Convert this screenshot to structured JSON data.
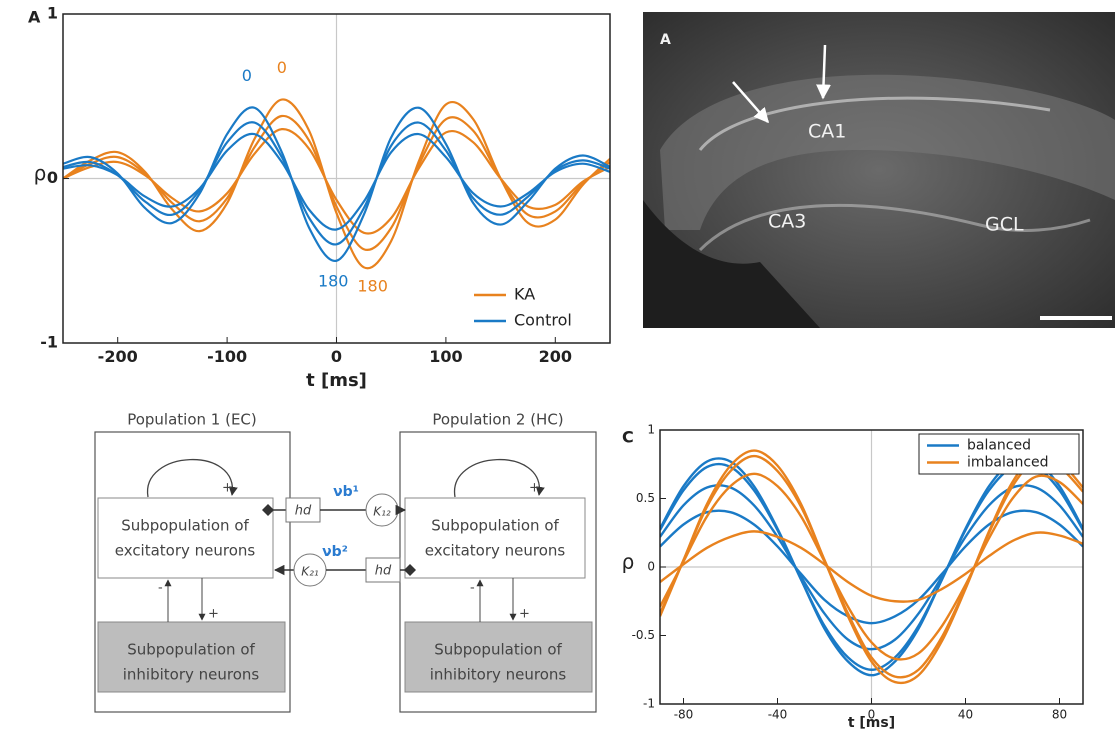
{
  "chart_data": [
    {
      "type": "line",
      "panel_label": "A",
      "xlabel": "t [ms]",
      "ylabel": "ρ",
      "x": [
        -250,
        -225,
        -200,
        -175,
        -150,
        -125,
        -100,
        -75,
        -50,
        -25,
        0,
        25,
        50,
        75,
        100,
        125,
        150,
        175,
        200,
        225,
        250
      ],
      "xlim": [
        -250,
        250
      ],
      "ylim": [
        -1,
        1
      ],
      "xticks": [
        -200,
        -100,
        0,
        100,
        200
      ],
      "yticks": [
        -1,
        0,
        1
      ],
      "zero_lines": true,
      "legend": "lower right",
      "legend_frame": false,
      "series": [
        {
          "name": "KA",
          "color": "#e8821e",
          "values": [
            [
              0.0,
              0.11,
              0.16,
              0.04,
              -0.19,
              -0.32,
              -0.15,
              0.24,
              0.48,
              0.29,
              -0.21,
              -0.54,
              -0.38,
              0.1,
              0.45,
              0.36,
              0.0,
              -0.27,
              -0.25,
              -0.04,
              0.12
            ],
            [
              0.0,
              0.09,
              0.13,
              0.03,
              -0.15,
              -0.26,
              -0.12,
              0.19,
              0.38,
              0.23,
              -0.17,
              -0.43,
              -0.3,
              0.08,
              0.36,
              0.29,
              0.0,
              -0.22,
              -0.2,
              -0.03,
              0.1
            ],
            [
              0.0,
              0.07,
              0.1,
              0.02,
              -0.12,
              -0.2,
              -0.09,
              0.15,
              0.3,
              0.18,
              -0.13,
              -0.33,
              -0.24,
              0.06,
              0.28,
              0.22,
              0.0,
              -0.17,
              -0.16,
              -0.02,
              0.07
            ]
          ]
        },
        {
          "name": "Control",
          "color": "#1a7ac6",
          "values": [
            [
              0.09,
              0.13,
              0.03,
              -0.18,
              -0.27,
              -0.09,
              0.27,
              0.43,
              0.16,
              -0.3,
              -0.5,
              -0.22,
              0.25,
              0.43,
              0.21,
              -0.15,
              -0.28,
              -0.14,
              0.06,
              0.14,
              0.07
            ],
            [
              0.07,
              0.1,
              0.02,
              -0.14,
              -0.22,
              -0.07,
              0.22,
              0.34,
              0.13,
              -0.24,
              -0.4,
              -0.18,
              0.2,
              0.34,
              0.17,
              -0.12,
              -0.22,
              -0.11,
              0.05,
              0.11,
              0.06
            ],
            [
              0.06,
              0.08,
              0.02,
              -0.11,
              -0.17,
              -0.06,
              0.17,
              0.27,
              0.1,
              -0.19,
              -0.31,
              -0.14,
              0.16,
              0.27,
              0.13,
              -0.09,
              -0.17,
              -0.09,
              0.04,
              0.09,
              0.04
            ]
          ]
        }
      ],
      "annotations": [
        {
          "text": "0",
          "color": "#1a7ac6"
        },
        {
          "text": "0",
          "color": "#e8821e"
        },
        {
          "text": "180",
          "color": "#1a7ac6"
        },
        {
          "text": "180",
          "color": "#e8821e"
        }
      ]
    },
    {
      "type": "line",
      "panel_label": "C",
      "xlabel": "t [ms]",
      "ylabel": "ρ",
      "x": [
        -90,
        -80,
        -70,
        -60,
        -50,
        -40,
        -30,
        -20,
        -10,
        0,
        10,
        20,
        30,
        40,
        50,
        60,
        70,
        80,
        90
      ],
      "xlim": [
        -90,
        90
      ],
      "ylim": [
        -1,
        1
      ],
      "xticks": [
        -80,
        -40,
        0,
        40,
        80
      ],
      "yticks": [
        -1,
        -0.5,
        0,
        0.5,
        1
      ],
      "zero_lines": true,
      "legend": "upper right",
      "legend_frame": true,
      "series": [
        {
          "name": "balanced",
          "color": "#1a7ac6",
          "values": [
            [
              0.27,
              0.56,
              0.73,
              0.73,
              0.56,
              0.27,
              -0.09,
              -0.43,
              -0.66,
              -0.75,
              -0.66,
              -0.43,
              -0.09,
              0.27,
              0.56,
              0.73,
              0.73,
              0.56,
              0.27
            ],
            [
              0.22,
              0.45,
              0.58,
              0.58,
              0.45,
              0.22,
              -0.07,
              -0.34,
              -0.53,
              -0.6,
              -0.53,
              -0.34,
              -0.07,
              0.22,
              0.45,
              0.58,
              0.58,
              0.45,
              0.22
            ],
            [
              0.15,
              0.31,
              0.4,
              0.4,
              0.31,
              0.15,
              -0.05,
              -0.24,
              -0.36,
              -0.41,
              -0.36,
              -0.24,
              -0.05,
              0.15,
              0.31,
              0.4,
              0.4,
              0.31,
              0.15
            ],
            [
              0.28,
              0.59,
              0.77,
              0.77,
              0.59,
              0.28,
              -0.09,
              -0.45,
              -0.69,
              -0.79,
              -0.69,
              -0.45,
              -0.09,
              0.28,
              0.59,
              0.77,
              0.77,
              0.59,
              0.28
            ]
          ]
        },
        {
          "name": "imbalanced",
          "color": "#e8821e",
          "values": [
            [
              -0.36,
              0.05,
              0.46,
              0.74,
              0.85,
              0.74,
              0.46,
              0.05,
              -0.36,
              -0.69,
              -0.84,
              -0.79,
              -0.54,
              -0.16,
              0.26,
              0.62,
              0.82,
              0.77,
              0.58
            ],
            [
              -0.29,
              0.04,
              0.37,
              0.59,
              0.68,
              0.59,
              0.37,
              0.04,
              -0.29,
              -0.55,
              -0.67,
              -0.63,
              -0.43,
              -0.13,
              0.21,
              0.5,
              0.66,
              0.62,
              0.46
            ],
            [
              -0.11,
              0.02,
              0.14,
              0.22,
              0.26,
              0.22,
              0.14,
              0.02,
              -0.11,
              -0.21,
              -0.25,
              -0.24,
              -0.16,
              -0.05,
              0.08,
              0.19,
              0.25,
              0.23,
              0.17
            ],
            [
              -0.34,
              0.05,
              0.44,
              0.7,
              0.81,
              0.7,
              0.44,
              0.05,
              -0.34,
              -0.66,
              -0.8,
              -0.75,
              -0.51,
              -0.15,
              0.25,
              0.59,
              0.78,
              0.73,
              0.55
            ]
          ]
        }
      ],
      "annotations": []
    }
  ],
  "image": {
    "panel_label": "A",
    "labels": [
      "CA1",
      "CA3",
      "GCL"
    ]
  },
  "diagram": {
    "populations": [
      {
        "title": "Population 1 (EC)",
        "excitatory": [
          "Subpopulation of",
          "excitatory neurons"
        ],
        "inhibitory": [
          "Subpopulation of",
          "inhibitory neurons"
        ],
        "loop_sign": "+",
        "exc_to_inh": "+",
        "inh_to_exc": "-"
      },
      {
        "title": "Population 2 (HC)",
        "excitatory": [
          "Subpopulation of",
          "excitatory neurons"
        ],
        "inhibitory": [
          "Subpopulation of",
          "inhibitory neurons"
        ],
        "loop_sign": "+",
        "exc_to_inh": "+",
        "inh_to_exc": "-"
      }
    ],
    "links": {
      "h1": "hd",
      "k12": "K₁₂",
      "nu1": "νb¹",
      "k21": "K₂₁",
      "nu2": "νb²",
      "h2": "hd"
    }
  }
}
